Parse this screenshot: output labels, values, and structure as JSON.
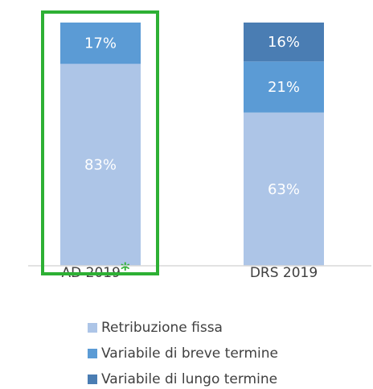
{
  "chart_data": {
    "type": "stacked_bar",
    "categories": [
      "AD 2019",
      "DRS 2019"
    ],
    "category_note": "*",
    "note_color": "#2db034",
    "highlight_color": "#2db034",
    "ylim": [
      0,
      100
    ],
    "series": [
      {
        "name": "Retribuzione fissa",
        "color": "#adc5e7",
        "values": [
          83,
          63
        ],
        "value_labels": [
          "83%",
          "63%"
        ]
      },
      {
        "name": "Variabile di breve termine",
        "color": "#5b9bd5",
        "values": [
          17,
          21
        ],
        "value_labels": [
          "17%",
          "21%"
        ]
      },
      {
        "name": "Variabile di lungo termine",
        "color": "#4a7db3",
        "values": [
          null,
          16
        ],
        "value_labels": [
          null,
          "16%"
        ]
      }
    ]
  }
}
